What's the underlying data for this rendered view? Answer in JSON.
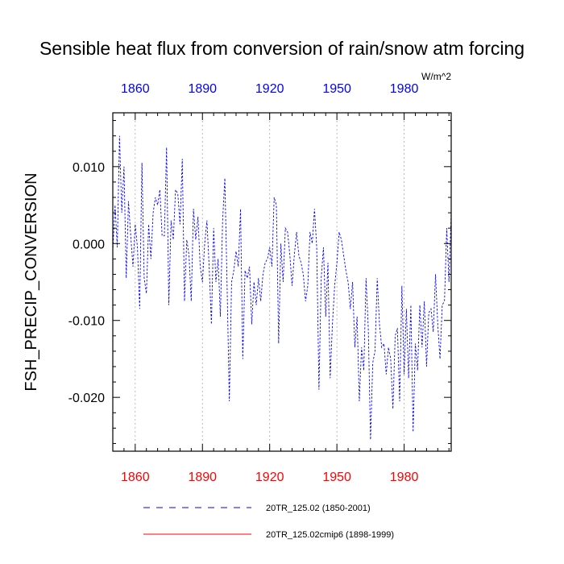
{
  "chart_data": {
    "type": "line",
    "title": "Sensible heat flux from conversion of rain/snow atm forcing",
    "units": "W/m^2",
    "ylabel": "FSH_PRECIP_CONVERSION",
    "xlabel": "",
    "xlim": [
      1850,
      2001
    ],
    "ylim": [
      -0.027,
      0.017
    ],
    "x_ticks": [
      1860,
      1890,
      1920,
      1950,
      1980
    ],
    "x_tick_labels": [
      "1860",
      "1890",
      "1920",
      "1950",
      "1980"
    ],
    "y_ticks": [
      0.01,
      0.0,
      -0.01,
      -0.02
    ],
    "y_tick_labels": [
      "0.010",
      "0.000",
      "-0.010",
      "-0.020"
    ],
    "colors": {
      "top_axis_labels": "#0000ff",
      "bottom_axis_labels": "#ff0000",
      "series1": "#0000ff",
      "series2": "#ff0000"
    },
    "series": [
      {
        "name": "20TR_125.02 (1850-2001)",
        "style": "dashed",
        "start_year": 1850,
        "values": [
          -0.001,
          0.005,
          -0.0005,
          0.014,
          0.004,
          0.01,
          -0.0045,
          0.0055,
          0.001,
          -0.003,
          0.0025,
          -0.0005,
          -0.0085,
          0.0105,
          -0.0045,
          -0.0065,
          0.0025,
          -0.002,
          0.004,
          0.006,
          0.005,
          0.007,
          0.001,
          0.001,
          0.0125,
          -0.008,
          0.003,
          0.0005,
          0.007,
          0.0065,
          0.0025,
          0.011,
          -0.0075,
          0.0005,
          -0.0015,
          -0.0075,
          0.0045,
          0.0005,
          0.0035,
          -0.003,
          -0.005,
          0.0,
          0.003,
          -0.003,
          -0.0105,
          0.002,
          -0.005,
          -0.002,
          -0.0095,
          0.003,
          0.0085,
          -0.0055,
          -0.0205,
          -0.005,
          -0.0035,
          -0.001,
          -0.003,
          0.0045,
          -0.015,
          -0.0035,
          -0.0045,
          -0.003,
          -0.0105,
          -0.005,
          -0.008,
          -0.0045,
          -0.0075,
          -0.004,
          -0.0025,
          -0.002,
          -0.0005,
          -0.003,
          0.006,
          0.005,
          -0.013,
          0.0,
          -0.005,
          0.002,
          0.0015,
          -0.0015,
          -0.0055,
          -0.0015,
          0.0015,
          -0.0015,
          -0.0025,
          -0.004,
          -0.0075,
          -0.0055,
          0.0015,
          0.0,
          0.0045,
          -0.0005,
          -0.019,
          -0.0045,
          -0.0005,
          -0.0095,
          -0.0025,
          -0.0175,
          -0.0105,
          -0.0055,
          -0.0025,
          0.0015,
          0.0005,
          -0.0015,
          -0.0035,
          -0.005,
          -0.0085,
          -0.005,
          -0.0135,
          -0.0095,
          -0.0205,
          -0.0135,
          -0.0165,
          -0.0045,
          -0.011,
          -0.0255,
          -0.0155,
          -0.014,
          -0.0045,
          -0.0105,
          -0.0135,
          -0.013,
          -0.017,
          -0.0135,
          -0.015,
          -0.0215,
          -0.012,
          -0.011,
          -0.0205,
          -0.0055,
          -0.017,
          -0.0085,
          -0.0175,
          -0.008,
          -0.0245,
          -0.013,
          -0.0165,
          -0.008,
          -0.0135,
          -0.0075,
          -0.016,
          -0.009,
          -0.0085,
          -0.0115,
          -0.004,
          -0.0105,
          -0.015,
          -0.008,
          -0.0075,
          0.002,
          -0.005,
          0.004
        ]
      },
      {
        "name": "20TR_125.02cmip6 (1898-1999)",
        "style": "solid",
        "values": []
      }
    ]
  }
}
